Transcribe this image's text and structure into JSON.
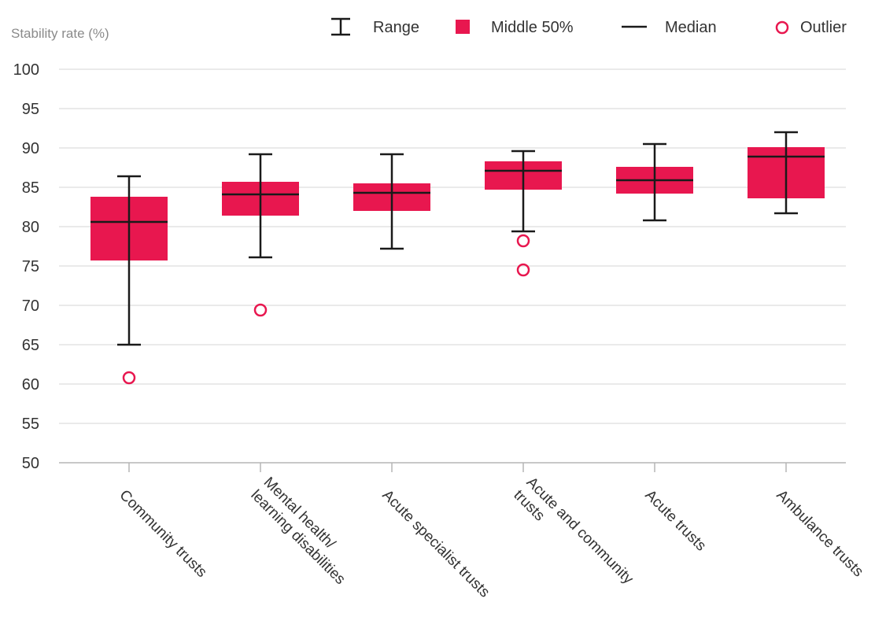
{
  "chart_data": {
    "type": "boxplot",
    "ylabel": "Stability rate (%)",
    "ylim": [
      50,
      100
    ],
    "yticks": [
      50,
      55,
      60,
      65,
      70,
      75,
      80,
      85,
      90,
      95,
      100
    ],
    "grid": true,
    "legend_position": "top-right",
    "legend": [
      {
        "key": "range",
        "label": "Range"
      },
      {
        "key": "middle",
        "label": "Middle 50%"
      },
      {
        "key": "median",
        "label": "Median"
      },
      {
        "key": "outlier",
        "label": "Outlier"
      }
    ],
    "colors": {
      "box": "#e8174f",
      "whisker": "#1a1a1a",
      "grid": "#e3e3e3",
      "outlier": "#e8174f"
    },
    "categories": [
      {
        "label": [
          "Community trusts"
        ],
        "min": 65.0,
        "q1": 75.7,
        "median": 80.6,
        "q3": 83.8,
        "max": 86.4,
        "outliers": [
          60.8
        ]
      },
      {
        "label": [
          "Mental health/",
          "learning disabilities"
        ],
        "min": 76.1,
        "q1": 81.4,
        "median": 84.1,
        "q3": 85.7,
        "max": 89.2,
        "outliers": [
          69.4
        ]
      },
      {
        "label": [
          "Acute specialist trusts"
        ],
        "min": 77.2,
        "q1": 82.0,
        "median": 84.3,
        "q3": 85.5,
        "max": 89.2,
        "outliers": []
      },
      {
        "label": [
          "Acute and community",
          "trusts"
        ],
        "min": 79.4,
        "q1": 84.7,
        "median": 87.1,
        "q3": 88.3,
        "max": 89.6,
        "outliers": [
          78.2,
          74.5
        ]
      },
      {
        "label": [
          "Acute trusts"
        ],
        "min": 80.8,
        "q1": 84.2,
        "median": 85.9,
        "q3": 87.6,
        "max": 90.5,
        "outliers": []
      },
      {
        "label": [
          "Ambulance trusts"
        ],
        "min": 81.7,
        "q1": 83.6,
        "median": 88.9,
        "q3": 90.1,
        "max": 92.0,
        "outliers": []
      }
    ]
  }
}
